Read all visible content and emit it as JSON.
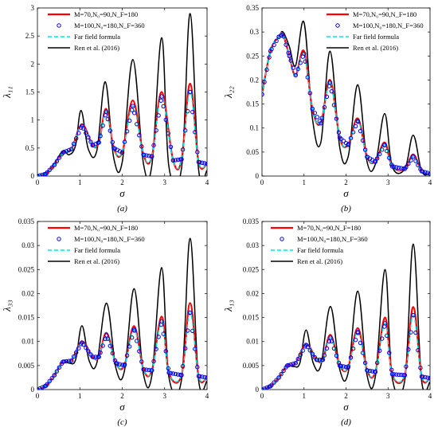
{
  "figure": {
    "legend_entries": [
      "M=70,N₀=90,N_F=180",
      "M=100,N₀=180,N_F=360",
      "Far field formula",
      "Ren et al. (2016)"
    ],
    "colors": {
      "series_m70": "#ff0000",
      "series_m100": "#0000ee",
      "far_field": "#00e5e5",
      "ren": "#000000"
    }
  },
  "chart_data": [
    {
      "type": "line",
      "panel_label": "(a)",
      "ylabel": "λ₁₁",
      "xlabel": "σ",
      "xlim": [
        0,
        4
      ],
      "ylim": [
        0,
        3
      ],
      "xticks": [
        0,
        1,
        2,
        3,
        4
      ],
      "yticks": [
        0,
        0.5,
        1,
        1.5,
        2,
        2.5,
        3
      ],
      "ytick_labels": [
        "0",
        "0.5",
        "1",
        "1.5",
        "2",
        "2.5",
        "3"
      ],
      "legend_placement": "top-left",
      "series": [
        {
          "name": "Ren et al. (2016)",
          "x": [
            0,
            0.2,
            0.4,
            0.6,
            0.75,
            0.9,
            1.03,
            1.2,
            1.4,
            1.6,
            1.8,
            2.0,
            2.25,
            2.5,
            2.7,
            2.93,
            3.1,
            3.4,
            3.6,
            3.8,
            4.0
          ],
          "values": [
            0,
            0.05,
            0.22,
            0.45,
            0.38,
            0.55,
            1.17,
            0.48,
            0.45,
            1.68,
            0.32,
            0.25,
            2.08,
            0.22,
            0.2,
            2.47,
            0.17,
            0.15,
            2.9,
            0.12,
            0.1
          ]
        },
        {
          "name": "M=70,N₀=90,N_F=180",
          "x": [
            0,
            0.2,
            0.4,
            0.6,
            0.8,
            1.05,
            1.3,
            1.45,
            1.62,
            1.8,
            2.0,
            2.25,
            2.5,
            2.7,
            2.93,
            3.2,
            3.4,
            3.6,
            3.8,
            4.0
          ],
          "values": [
            0,
            0.04,
            0.2,
            0.42,
            0.48,
            0.92,
            0.55,
            0.6,
            1.2,
            0.5,
            0.42,
            1.35,
            0.38,
            0.35,
            1.5,
            0.28,
            0.3,
            1.65,
            0.25,
            0.22
          ]
        },
        {
          "name": "M=100,N₀=180,N_F=360",
          "x": [
            0,
            0.2,
            0.4,
            0.6,
            0.8,
            1.05,
            1.3,
            1.45,
            1.62,
            1.8,
            2.0,
            2.25,
            2.5,
            2.7,
            2.93,
            3.2,
            3.4,
            3.6,
            3.8,
            4.0
          ],
          "values": [
            0,
            0.04,
            0.2,
            0.42,
            0.48,
            0.9,
            0.55,
            0.6,
            1.15,
            0.5,
            0.42,
            1.25,
            0.38,
            0.35,
            1.42,
            0.28,
            0.3,
            1.5,
            0.25,
            0.22
          ]
        },
        {
          "name": "Far field formula",
          "x": [
            0,
            0.2,
            0.4,
            0.6,
            0.8,
            1.05,
            1.3,
            1.45,
            1.62,
            1.8,
            2.0,
            2.25,
            2.5,
            2.7,
            2.93,
            3.2,
            3.4,
            3.6,
            3.8,
            4.0
          ],
          "values": [
            0,
            0.04,
            0.2,
            0.42,
            0.48,
            0.9,
            0.55,
            0.6,
            1.15,
            0.5,
            0.42,
            1.25,
            0.38,
            0.35,
            1.42,
            0.28,
            0.3,
            1.5,
            0.25,
            0.22
          ]
        }
      ]
    },
    {
      "type": "line",
      "panel_label": "(b)",
      "ylabel": "λ₂₂",
      "xlabel": "σ",
      "xlim": [
        0,
        4
      ],
      "ylim": [
        0,
        0.35
      ],
      "xticks": [
        0,
        1,
        2,
        3,
        4
      ],
      "yticks": [
        0,
        0.05,
        0.1,
        0.15,
        0.2,
        0.25,
        0.3,
        0.35
      ],
      "ytick_labels": [
        "0",
        "0.05",
        "0.1",
        "0.15",
        "0.2",
        "0.25",
        "0.3",
        "0.35"
      ],
      "legend_placement": "top-right",
      "series": [
        {
          "name": "Ren et al. (2016)",
          "x": [
            0,
            0.2,
            0.4,
            0.5,
            0.65,
            0.8,
            1.0,
            1.2,
            1.4,
            1.62,
            1.85,
            2.05,
            2.28,
            2.5,
            2.7,
            2.92,
            3.1,
            3.4,
            3.6,
            3.8,
            4.0
          ],
          "values": [
            0.17,
            0.26,
            0.29,
            0.3,
            0.27,
            0.23,
            0.32,
            0.12,
            0.07,
            0.26,
            0.06,
            0.04,
            0.19,
            0.03,
            0.025,
            0.13,
            0.02,
            0.015,
            0.085,
            0.01,
            0.005
          ]
        },
        {
          "name": "M=70,N₀=90,N_F=180",
          "x": [
            0,
            0.2,
            0.4,
            0.5,
            0.65,
            0.8,
            1.0,
            1.2,
            1.4,
            1.62,
            1.85,
            2.05,
            2.28,
            2.5,
            2.7,
            2.92,
            3.1,
            3.4,
            3.6,
            3.8,
            4.0
          ],
          "values": [
            0.17,
            0.26,
            0.29,
            0.295,
            0.25,
            0.21,
            0.26,
            0.14,
            0.11,
            0.2,
            0.08,
            0.065,
            0.12,
            0.04,
            0.03,
            0.07,
            0.02,
            0.015,
            0.045,
            0.01,
            0.005
          ]
        },
        {
          "name": "M=100,N₀=180,N_F=360",
          "x": [
            0,
            0.2,
            0.4,
            0.5,
            0.65,
            0.8,
            1.0,
            1.2,
            1.4,
            1.62,
            1.85,
            2.05,
            2.28,
            2.5,
            2.7,
            2.92,
            3.1,
            3.4,
            3.6,
            3.8,
            4.0
          ],
          "values": [
            0.17,
            0.26,
            0.29,
            0.295,
            0.25,
            0.21,
            0.255,
            0.14,
            0.11,
            0.195,
            0.08,
            0.065,
            0.115,
            0.04,
            0.03,
            0.065,
            0.02,
            0.015,
            0.04,
            0.01,
            0.005
          ]
        },
        {
          "name": "Far field formula",
          "x": [
            0,
            0.2,
            0.4,
            0.5,
            0.65,
            0.8,
            1.0,
            1.2,
            1.4,
            1.62,
            1.85,
            2.05,
            2.28,
            2.5,
            2.7,
            2.92,
            3.1,
            3.4,
            3.6,
            3.8,
            4.0
          ],
          "values": [
            0.17,
            0.26,
            0.29,
            0.295,
            0.25,
            0.21,
            0.255,
            0.14,
            0.11,
            0.195,
            0.08,
            0.065,
            0.115,
            0.04,
            0.03,
            0.065,
            0.02,
            0.015,
            0.04,
            0.01,
            0.005
          ]
        }
      ]
    },
    {
      "type": "line",
      "panel_label": "(c)",
      "ylabel": "λ₃₃",
      "xlabel": "σ",
      "xlim": [
        0,
        4
      ],
      "ylim": [
        0,
        0.035
      ],
      "xticks": [
        0,
        1,
        2,
        3,
        4
      ],
      "yticks": [
        0,
        0.005,
        0.01,
        0.015,
        0.02,
        0.025,
        0.03,
        0.035
      ],
      "ytick_labels": [
        "0",
        "0.005",
        "0.01",
        "0.015",
        "0.02",
        "0.025",
        "0.03",
        "0.035"
      ],
      "legend_placement": "top-left",
      "series": [
        {
          "name": "Ren et al. (2016)",
          "x": [
            0,
            0.2,
            0.4,
            0.6,
            0.75,
            0.9,
            1.05,
            1.22,
            1.4,
            1.63,
            1.85,
            2.05,
            2.28,
            2.5,
            2.7,
            2.93,
            3.1,
            3.4,
            3.6,
            3.8,
            4.0
          ],
          "values": [
            0,
            0.0008,
            0.003,
            0.0058,
            0.0055,
            0.0062,
            0.0133,
            0.006,
            0.0055,
            0.018,
            0.0045,
            0.0038,
            0.021,
            0.0032,
            0.003,
            0.0254,
            0.0026,
            0.0022,
            0.0315,
            0.002,
            0.0018
          ]
        },
        {
          "name": "M=70,N₀=90,N_F=180",
          "x": [
            0,
            0.2,
            0.4,
            0.6,
            0.8,
            1.05,
            1.3,
            1.45,
            1.63,
            1.85,
            2.05,
            2.28,
            2.5,
            2.7,
            2.93,
            3.1,
            3.4,
            3.6,
            3.8,
            4.0
          ],
          "values": [
            0,
            0.0008,
            0.003,
            0.0058,
            0.006,
            0.01,
            0.0068,
            0.0068,
            0.0118,
            0.0055,
            0.005,
            0.0132,
            0.0042,
            0.004,
            0.0152,
            0.0035,
            0.003,
            0.018,
            0.0028,
            0.0025
          ]
        },
        {
          "name": "M=100,N₀=180,N_F=360",
          "x": [
            0,
            0.2,
            0.4,
            0.6,
            0.8,
            1.05,
            1.3,
            1.45,
            1.63,
            1.85,
            2.05,
            2.28,
            2.5,
            2.7,
            2.93,
            3.1,
            3.4,
            3.6,
            3.8,
            4.0
          ],
          "values": [
            0,
            0.0008,
            0.003,
            0.0058,
            0.006,
            0.0098,
            0.0068,
            0.0068,
            0.0113,
            0.0055,
            0.005,
            0.0125,
            0.0042,
            0.004,
            0.0142,
            0.0035,
            0.003,
            0.016,
            0.0028,
            0.0025
          ]
        },
        {
          "name": "Far field formula",
          "x": [
            0,
            0.2,
            0.4,
            0.6,
            0.8,
            1.05,
            1.3,
            1.45,
            1.63,
            1.85,
            2.05,
            2.28,
            2.5,
            2.7,
            2.93,
            3.1,
            3.4,
            3.6,
            3.8,
            4.0
          ],
          "values": [
            0,
            0.0008,
            0.003,
            0.0058,
            0.006,
            0.0098,
            0.0068,
            0.0068,
            0.0113,
            0.0055,
            0.005,
            0.0125,
            0.0042,
            0.004,
            0.0142,
            0.0035,
            0.003,
            0.016,
            0.0028,
            0.0025
          ]
        }
      ]
    },
    {
      "type": "line",
      "panel_label": "(d)",
      "ylabel": "λ₁₃",
      "xlabel": "σ",
      "xlim": [
        0,
        4
      ],
      "ylim": [
        0,
        0.035
      ],
      "xticks": [
        0,
        1,
        2,
        3,
        4
      ],
      "yticks": [
        0,
        0.005,
        0.01,
        0.015,
        0.02,
        0.025,
        0.03,
        0.035
      ],
      "ytick_labels": [
        "0",
        "0.005",
        "0.01",
        "0.015",
        "0.02",
        "0.025",
        "0.03",
        "0.035"
      ],
      "legend_placement": "top-left",
      "series": [
        {
          "name": "Ren et al. (2016)",
          "x": [
            0,
            0.2,
            0.4,
            0.6,
            0.75,
            0.9,
            1.05,
            1.22,
            1.4,
            1.63,
            1.85,
            2.05,
            2.28,
            2.5,
            2.7,
            2.93,
            3.1,
            3.4,
            3.6,
            3.8,
            4.0
          ],
          "values": [
            0,
            0.0007,
            0.0025,
            0.005,
            0.0048,
            0.0055,
            0.0124,
            0.0055,
            0.005,
            0.0173,
            0.0042,
            0.0035,
            0.0205,
            0.003,
            0.0028,
            0.025,
            0.0024,
            0.002,
            0.0303,
            0.0018,
            0.0016
          ]
        },
        {
          "name": "M=70,N₀=90,N_F=180",
          "x": [
            0,
            0.2,
            0.4,
            0.6,
            0.8,
            1.05,
            1.3,
            1.45,
            1.63,
            1.85,
            2.05,
            2.28,
            2.5,
            2.7,
            2.93,
            3.1,
            3.4,
            3.6,
            3.8,
            4.0
          ],
          "values": [
            0,
            0.0007,
            0.0025,
            0.005,
            0.0055,
            0.0095,
            0.0062,
            0.0062,
            0.0114,
            0.005,
            0.0046,
            0.0128,
            0.004,
            0.0037,
            0.015,
            0.0032,
            0.003,
            0.0172,
            0.0027,
            0.0024
          ]
        },
        {
          "name": "M=100,N₀=180,N_F=360",
          "x": [
            0,
            0.2,
            0.4,
            0.6,
            0.8,
            1.05,
            1.3,
            1.45,
            1.63,
            1.85,
            2.05,
            2.28,
            2.5,
            2.7,
            2.93,
            3.1,
            3.4,
            3.6,
            3.8,
            4.0
          ],
          "values": [
            0,
            0.0007,
            0.0025,
            0.005,
            0.0055,
            0.0093,
            0.0062,
            0.0062,
            0.0108,
            0.005,
            0.0046,
            0.012,
            0.004,
            0.0037,
            0.0138,
            0.0032,
            0.003,
            0.0155,
            0.0027,
            0.0024
          ]
        },
        {
          "name": "Far field formula",
          "x": [
            0,
            0.2,
            0.4,
            0.6,
            0.8,
            1.05,
            1.3,
            1.45,
            1.63,
            1.85,
            2.05,
            2.28,
            2.5,
            2.7,
            2.93,
            3.1,
            3.4,
            3.6,
            3.8,
            4.0
          ],
          "values": [
            0,
            0.0007,
            0.0025,
            0.005,
            0.0055,
            0.0093,
            0.0062,
            0.0062,
            0.0108,
            0.005,
            0.0046,
            0.012,
            0.004,
            0.0037,
            0.0138,
            0.0032,
            0.003,
            0.0155,
            0.0027,
            0.0024
          ]
        }
      ]
    }
  ]
}
